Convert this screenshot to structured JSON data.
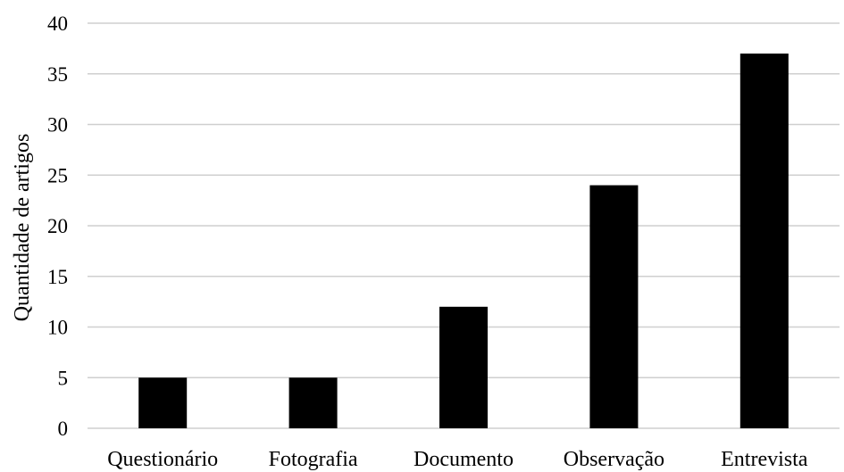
{
  "chart_data": {
    "type": "bar",
    "categories": [
      "Questionário",
      "Fotografia",
      "Documento",
      "Observação",
      "Entrevista"
    ],
    "values": [
      5,
      5,
      12,
      24,
      37
    ],
    "title": "",
    "xlabel": "",
    "ylabel": "Quantidade de artigos",
    "ylim": [
      0,
      40
    ],
    "yticks": [
      0,
      5,
      10,
      15,
      20,
      25,
      30,
      35,
      40
    ],
    "grid": true,
    "legend": "none",
    "colors": {
      "bar": "#000000",
      "grid": "#cfcfcf"
    }
  }
}
